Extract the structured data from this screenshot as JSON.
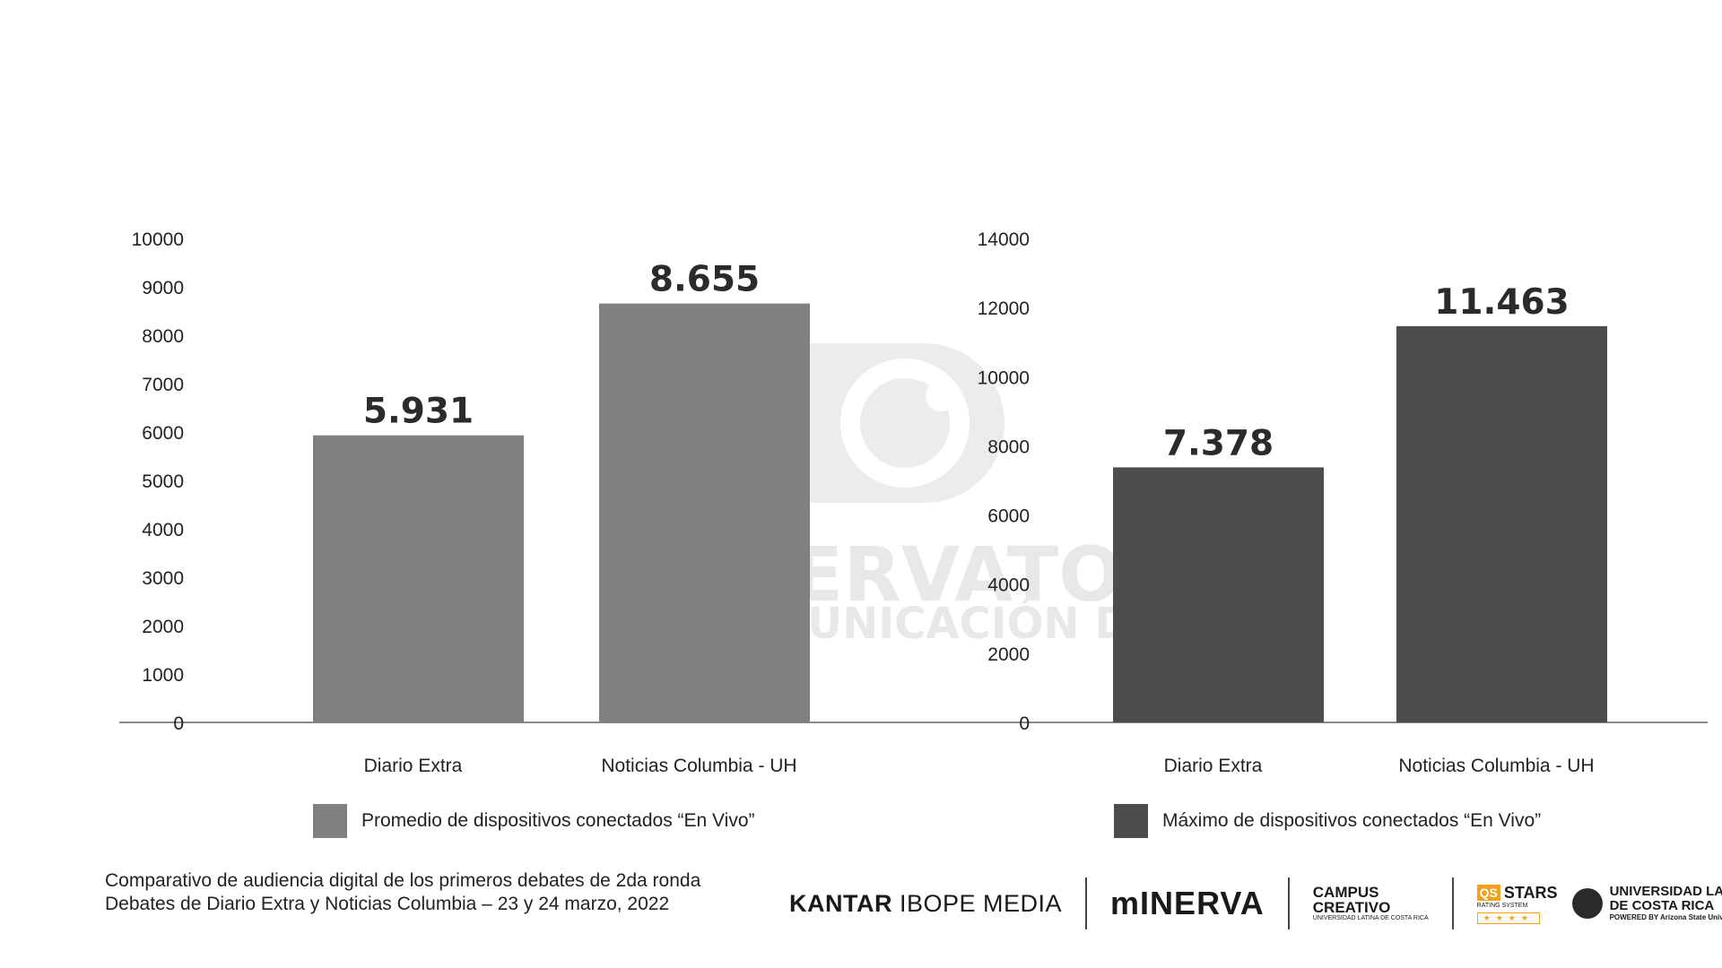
{
  "chart_data": [
    {
      "type": "bar",
      "categories": [
        "Diario Extra",
        "Noticias Columbia - UH"
      ],
      "values": [
        5931,
        8655
      ],
      "data_labels": [
        "5.931",
        "8.655"
      ],
      "ylim": [
        0,
        10000
      ],
      "yticks": [
        "0",
        "1000",
        "2000",
        "3000",
        "4000",
        "5000",
        "6000",
        "7000",
        "8000",
        "9000",
        "10000"
      ],
      "color": "#808080",
      "legend": "Promedio de dispositivos conectados “En Vivo”"
    },
    {
      "type": "bar",
      "categories": [
        "Diario Extra",
        "Noticias Columbia - UH"
      ],
      "values": [
        7378,
        11463
      ],
      "data_labels": [
        "7.378",
        "11.463"
      ],
      "ylim": [
        0,
        14000
      ],
      "yticks": [
        "0",
        "2000",
        "4000",
        "6000",
        "8000",
        "10000",
        "12000",
        "14000"
      ],
      "color": "#4d4d4d",
      "legend": "Máximo de dispositivos conectados “En Vivo”"
    }
  ],
  "watermark": {
    "line1": "OBSERVATORIO",
    "line2": "DE COMUNICACIÓN DIGITAL",
    "icon": "speech-bubble-eye-icon"
  },
  "footnote": {
    "line1": "Comparativo de audiencia digital de los primeros debates de 2da ronda",
    "line2": "Debates de Diario Extra y Noticias Columbia – 23 y 24 marzo, 2022"
  },
  "logos": {
    "kantar_bold": "KANTAR",
    "kantar_light": "IBOPE MEDIA",
    "minerva": "mINERVA",
    "campus_line1": "CAMPUS",
    "campus_line2": "CREATIVO",
    "campus_sub": "UNIVERSIDAD LATINA DE COSTA RICA",
    "qs_box": "QS",
    "qs_stars": "STARS",
    "qs_sub": "RATING SYSTEM",
    "qs_rating": "★★★★",
    "ulatina_line1": "UNIVERSIDAD LATINA",
    "ulatina_line2": "DE COSTA RICA",
    "ulatina_sub": "POWERED BY Arizona State University"
  }
}
